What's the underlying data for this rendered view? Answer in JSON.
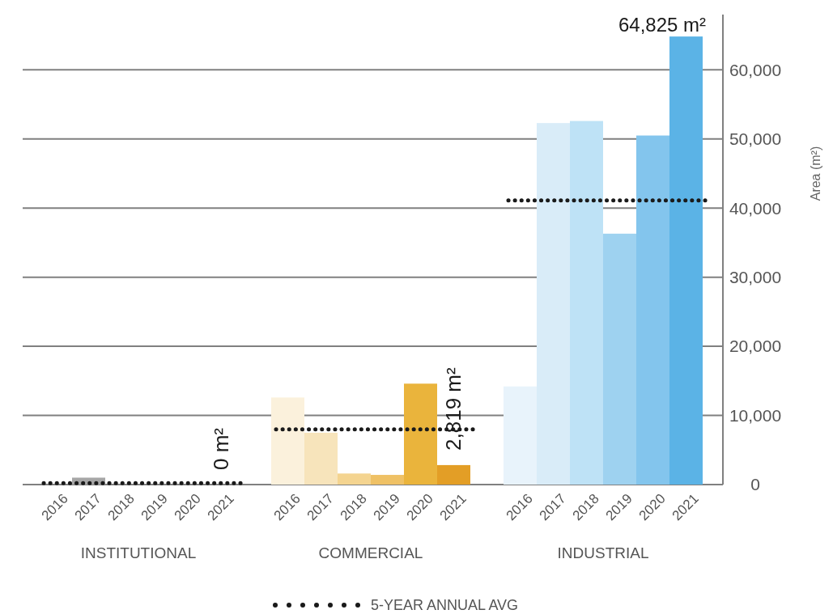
{
  "chart_data": {
    "type": "bar",
    "categories": [
      "2016",
      "2017",
      "2018",
      "2019",
      "2020",
      "2021",
      null,
      "2016",
      "2017",
      "2018",
      "2019",
      "2020",
      "2021",
      null,
      "2016",
      "2017",
      "2018",
      "2019",
      "2020",
      "2021"
    ],
    "values": [
      0,
      1000,
      0,
      0,
      0,
      0,
      null,
      12600,
      7500,
      1600,
      1400,
      14600,
      2819,
      null,
      14200,
      52300,
      52600,
      36300,
      50500,
      64825
    ],
    "colors": [
      "#a6a6a6",
      "#a6a6a6",
      "#a6a6a6",
      "#a6a6a6",
      "#a6a6a6",
      "#a6a6a6",
      null,
      "#fbf1dc",
      "#f7e4bb",
      "#f4d490",
      "#efc165",
      "#eab43c",
      "#e39e26",
      null,
      "#e8f3fb",
      "#d9ecf8",
      "#bee2f6",
      "#9ed2f0",
      "#83c5ed",
      "#5bb3e6"
    ],
    "value_labels": [
      null,
      null,
      null,
      null,
      null,
      "0 m²",
      null,
      null,
      null,
      null,
      null,
      null,
      "2,819 m²",
      null,
      null,
      null,
      null,
      null,
      null,
      "64,825 m²"
    ],
    "ylim": [
      0,
      68000
    ],
    "yticks": [
      {
        "value": 0,
        "label": "0"
      },
      {
        "value": 10000,
        "label": "10,000"
      },
      {
        "value": 20000,
        "label": "20,000"
      },
      {
        "value": 30000,
        "label": "30,000"
      },
      {
        "value": 40000,
        "label": "40,000"
      },
      {
        "value": 50000,
        "label": "50,000"
      },
      {
        "value": 60000,
        "label": "60,000"
      }
    ],
    "ylabel": "Area (m²)",
    "grid": "y",
    "legend": "bottom",
    "ref_lines": [
      {
        "axis": "y",
        "value": 200,
        "label": "5-YEAR ANNUAL AVG",
        "line_style": "dotted",
        "color": "#1a1a1a"
      },
      {
        "axis": "y",
        "value": 8000,
        "line_style": "dotted",
        "color": "#1a1a1a"
      },
      {
        "axis": "y",
        "value": 41100,
        "line_style": "dotted",
        "color": "#1a1a1a"
      }
    ],
    "annotations": [
      "INSTITUTIONAL",
      "COMMERCIAL",
      "INDUSTRIAL"
    ]
  }
}
